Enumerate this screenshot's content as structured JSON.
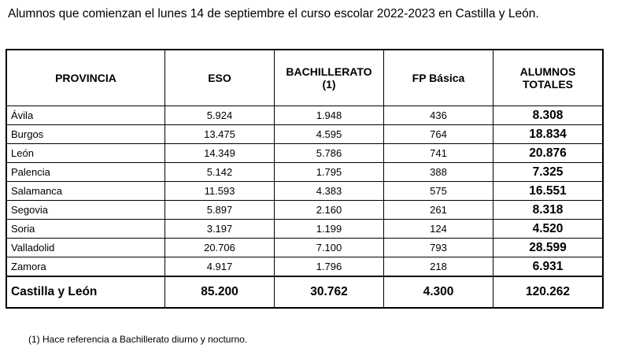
{
  "title": "Alumnos que comienzan el lunes 14 de septiembre el curso escolar 2022-2023 en Castilla y León.",
  "table": {
    "headers": {
      "provincia": "PROVINCIA",
      "eso": "ESO",
      "bach_line1": "BACHILLERATO",
      "bach_line2": "(1)",
      "fp": "FP Básica",
      "totales_line1": "ALUMNOS",
      "totales_line2": "TOTALES"
    },
    "rows": [
      {
        "provincia": "Ávila",
        "eso": "5.924",
        "bachillerato": "1.948",
        "fp": "436",
        "total": "8.308"
      },
      {
        "provincia": "Burgos",
        "eso": "13.475",
        "bachillerato": "4.595",
        "fp": "764",
        "total": "18.834"
      },
      {
        "provincia": "León",
        "eso": "14.349",
        "bachillerato": "5.786",
        "fp": "741",
        "total": "20.876"
      },
      {
        "provincia": "Palencia",
        "eso": "5.142",
        "bachillerato": "1.795",
        "fp": "388",
        "total": "7.325"
      },
      {
        "provincia": "Salamanca",
        "eso": "11.593",
        "bachillerato": "4.383",
        "fp": "575",
        "total": "16.551"
      },
      {
        "provincia": "Segovia",
        "eso": "5.897",
        "bachillerato": "2.160",
        "fp": "261",
        "total": "8.318"
      },
      {
        "provincia": "Soria",
        "eso": "3.197",
        "bachillerato": "1.199",
        "fp": "124",
        "total": "4.520"
      },
      {
        "provincia": "Valladolid",
        "eso": "20.706",
        "bachillerato": "7.100",
        "fp": "793",
        "total": "28.599"
      },
      {
        "provincia": "Zamora",
        "eso": "4.917",
        "bachillerato": "1.796",
        "fp": "218",
        "total": "6.931"
      }
    ],
    "footer": {
      "provincia": "Castilla y León",
      "eso": "85.200",
      "bachillerato": "30.762",
      "fp": "4.300",
      "total": "120.262"
    }
  },
  "footnote": "(1)  Hace referencia a Bachillerato diurno y nocturno."
}
